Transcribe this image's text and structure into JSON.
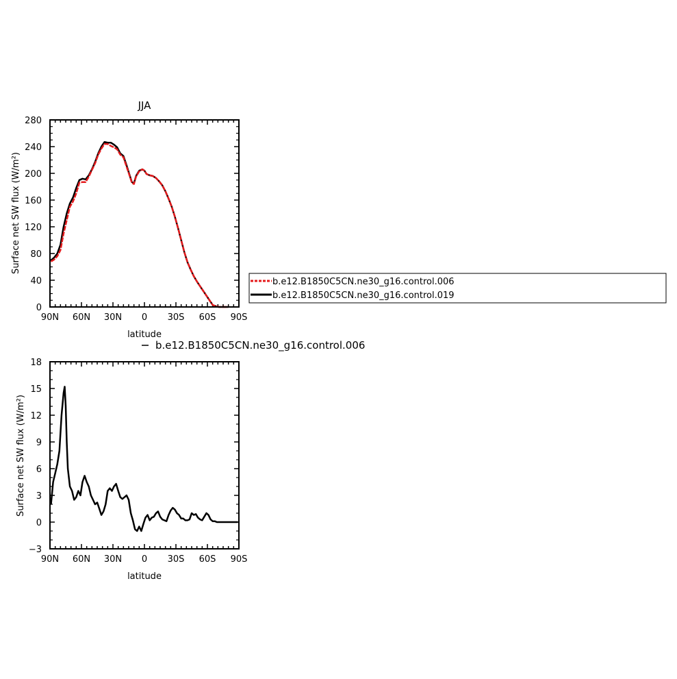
{
  "colors": {
    "series_006": "#e41a1c",
    "series_019": "#000000",
    "diff": "#000000"
  },
  "chart_data": [
    {
      "type": "line",
      "title": "JJA",
      "xlabel": "latitude",
      "ylabel": "Surface net SW flux (W/m²)",
      "xlim": [
        90,
        -90
      ],
      "ylim": [
        0,
        280
      ],
      "xticks": [
        90,
        60,
        30,
        0,
        -30,
        -60,
        -90
      ],
      "xtick_labels": [
        "90N",
        "60N",
        "30N",
        "0",
        "30S",
        "60S",
        "90S"
      ],
      "yticks": [
        0,
        40,
        80,
        120,
        160,
        200,
        240,
        280
      ],
      "ytick_labels": [
        "0",
        "40",
        "80",
        "120",
        "160",
        "200",
        "240",
        "280"
      ],
      "grid": false,
      "legend": "right",
      "series": [
        {
          "name": "b.e12.B1850C5CN.ne30_g16.control.006",
          "color": "#e41a1c",
          "x": [
            89,
            86,
            83,
            80,
            77,
            74,
            71,
            68,
            65,
            62,
            59,
            56,
            53,
            50,
            47,
            44,
            41,
            38,
            35,
            32,
            29,
            26,
            23,
            20,
            17,
            14,
            12,
            10,
            8,
            5,
            2,
            0,
            -2,
            -5,
            -8,
            -11,
            -14,
            -17,
            -20,
            -23,
            -26,
            -29,
            -32,
            -35,
            -38,
            -41,
            -44,
            -47,
            -50,
            -53,
            -56,
            -59,
            -62,
            -65,
            -68,
            -71,
            -75,
            -80
          ],
          "y": [
            68,
            71,
            76,
            85,
            110,
            130,
            150,
            158,
            170,
            186,
            187,
            187,
            195,
            205,
            215,
            228,
            237,
            244,
            244,
            241,
            239,
            236,
            228,
            224,
            210,
            196,
            186,
            184,
            195,
            203,
            206,
            204,
            199,
            197,
            196,
            193,
            188,
            182,
            173,
            162,
            150,
            135,
            118,
            100,
            82,
            67,
            56,
            46,
            38,
            31,
            24,
            17,
            10,
            3,
            1,
            0,
            0,
            0
          ]
        },
        {
          "name": "b.e12.B1850C5CN.ne30_g16.control.019",
          "color": "#000000",
          "x": [
            89,
            86,
            83,
            80,
            77,
            74,
            71,
            68,
            65,
            62,
            59,
            56,
            53,
            50,
            47,
            44,
            41,
            38,
            35,
            32,
            29,
            26,
            23,
            20,
            17,
            14,
            12,
            10,
            8,
            5,
            2,
            0,
            -2,
            -5,
            -8,
            -11,
            -14,
            -17,
            -20,
            -23,
            -26,
            -29,
            -32,
            -35,
            -38,
            -41,
            -44,
            -47,
            -50,
            -53,
            -56,
            -59,
            -62,
            -65,
            -68,
            -71,
            -75,
            -80
          ],
          "y": [
            70,
            74,
            80,
            93,
            120,
            140,
            155,
            164,
            178,
            190,
            192,
            191,
            197,
            206,
            217,
            230,
            240,
            247,
            246,
            246,
            243,
            239,
            230,
            226,
            212,
            197,
            187,
            185,
            196,
            204,
            206,
            204,
            199,
            197,
            196,
            193,
            188,
            182,
            173,
            162,
            150,
            135,
            118,
            100,
            82,
            67,
            56,
            46,
            38,
            31,
            24,
            17,
            10,
            3,
            1,
            0,
            0,
            0
          ]
        }
      ]
    },
    {
      "type": "line",
      "title": "b.e12.B1850C5CN.ne30_g16.control.006",
      "xlabel": "latitude",
      "ylabel": "Surface net SW flux (W/m²)",
      "xlim": [
        90,
        -90
      ],
      "ylim": [
        -3,
        18
      ],
      "xticks": [
        90,
        60,
        30,
        0,
        -30,
        -60,
        -90
      ],
      "xtick_labels": [
        "90N",
        "60N",
        "30N",
        "0",
        "30S",
        "60S",
        "90S"
      ],
      "yticks": [
        -3,
        0,
        3,
        6,
        9,
        12,
        15,
        18
      ],
      "ytick_labels": [
        "−3",
        "0",
        "3",
        "6",
        "9",
        "12",
        "15",
        "18"
      ],
      "grid": false,
      "series": [
        {
          "color": "#000000",
          "x": [
            89,
            87,
            85,
            83,
            81,
            79,
            77,
            76,
            75,
            74,
            73,
            71,
            69,
            67,
            65,
            63,
            61,
            59,
            57,
            55,
            53,
            51,
            49,
            47,
            45,
            43,
            41,
            39,
            37,
            35,
            33,
            31,
            29,
            27,
            25,
            23,
            21,
            19,
            17,
            15,
            13,
            11,
            9,
            7,
            5,
            3,
            1,
            -1,
            -3,
            -5,
            -7,
            -9,
            -11,
            -13,
            -15,
            -17,
            -19,
            -21,
            -23,
            -25,
            -27,
            -29,
            -31,
            -33,
            -35,
            -37,
            -39,
            -41,
            -43,
            -45,
            -47,
            -49,
            -51,
            -53,
            -55,
            -57,
            -59,
            -61,
            -63,
            -65,
            -67,
            -69,
            -72,
            -75,
            -80,
            -85,
            -89
          ],
          "y": [
            2,
            4.5,
            5.5,
            6.5,
            8,
            12,
            14.5,
            15.2,
            13,
            9,
            6,
            4,
            3.5,
            2.5,
            2.8,
            3.5,
            3,
            4.5,
            5.2,
            4.5,
            4,
            3,
            2.5,
            2,
            2.2,
            1.5,
            0.8,
            1.2,
            2,
            3.5,
            3.8,
            3.5,
            4,
            4.3,
            3.5,
            2.8,
            2.6,
            2.8,
            3,
            2.5,
            1,
            0.2,
            -0.8,
            -1,
            -0.5,
            -1,
            -0.2,
            0.5,
            0.8,
            0.2,
            0.5,
            0.6,
            1,
            1.2,
            0.6,
            0.3,
            0.2,
            0.1,
            0.8,
            1.3,
            1.6,
            1.4,
            1,
            0.8,
            0.4,
            0.4,
            0.2,
            0.2,
            0.3,
            1,
            0.8,
            0.9,
            0.5,
            0.3,
            0.2,
            0.6,
            1,
            0.8,
            0.3,
            0.1,
            0.1,
            0,
            0,
            0,
            0,
            0,
            0
          ]
        }
      ]
    }
  ]
}
